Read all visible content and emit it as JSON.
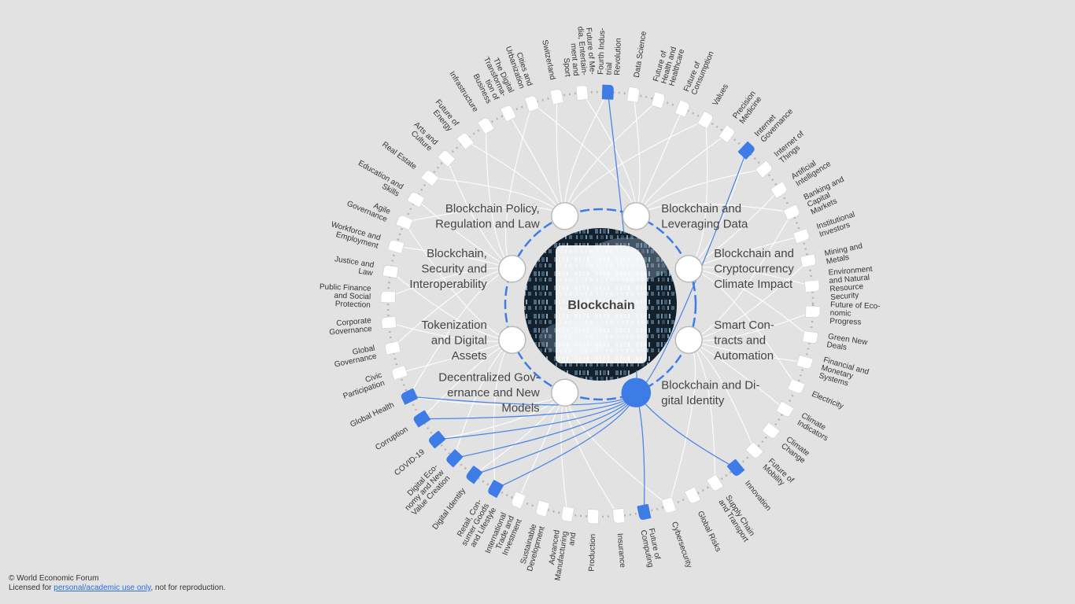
{
  "center": {
    "title": "Blockchain"
  },
  "colors": {
    "highlight": "#3d7be6",
    "background": "#e2e2e2",
    "node": "#ffffff"
  },
  "key_issues": [
    {
      "lines": [
        "Blockchain Policy,",
        "Regulation and Law"
      ],
      "active": false
    },
    {
      "lines": [
        "Blockchain and",
        "Leveraging Data"
      ],
      "active": false
    },
    {
      "lines": [
        "Blockchain and",
        "Cryptocurrency",
        "Climate Impact"
      ],
      "active": false
    },
    {
      "lines": [
        "Smart Con-",
        "tracts and",
        "Automation"
      ],
      "active": false
    },
    {
      "lines": [
        "Blockchain and Di-",
        "gital Identity"
      ],
      "active": true
    },
    {
      "lines": [
        "Decentralized Gov-",
        "ernance and New",
        "Models"
      ],
      "active": false
    },
    {
      "lines": [
        "Tokenization",
        "and Digital",
        "Assets"
      ],
      "active": false
    },
    {
      "lines": [
        "Blockchain,",
        "Security and",
        "Interoperability"
      ],
      "active": false
    }
  ],
  "topics": [
    {
      "lines": [
        "Fourth Indus-",
        "trial",
        "Revolution"
      ],
      "highlighted": true
    },
    {
      "lines": [
        "Data Science"
      ],
      "highlighted": false
    },
    {
      "lines": [
        "Future of",
        "Health and",
        "Healthcare"
      ],
      "highlighted": false
    },
    {
      "lines": [
        "Future of",
        "Consumption"
      ],
      "highlighted": false
    },
    {
      "lines": [
        "Values"
      ],
      "highlighted": false
    },
    {
      "lines": [
        "Precision",
        "Medicine"
      ],
      "highlighted": false
    },
    {
      "lines": [
        "Internet",
        "Governance"
      ],
      "highlighted": true
    },
    {
      "lines": [
        "Internet of",
        "Things"
      ],
      "highlighted": false
    },
    {
      "lines": [
        "Artificial",
        "Intelligence"
      ],
      "highlighted": false
    },
    {
      "lines": [
        "Banking and",
        "Capital",
        "Markets"
      ],
      "highlighted": false
    },
    {
      "lines": [
        "Institutional",
        "Investors"
      ],
      "highlighted": false
    },
    {
      "lines": [
        "Mining and",
        "Metals"
      ],
      "highlighted": false
    },
    {
      "lines": [
        "Environment",
        "and Natural",
        "Resource",
        "Security"
      ],
      "highlighted": false
    },
    {
      "lines": [
        "Future of Eco-",
        "nomic",
        "Progress"
      ],
      "highlighted": false
    },
    {
      "lines": [
        "Green New",
        "Deals"
      ],
      "highlighted": false
    },
    {
      "lines": [
        "Financial and",
        "Monetary",
        "Systems"
      ],
      "highlighted": false
    },
    {
      "lines": [
        "Electricity"
      ],
      "highlighted": false
    },
    {
      "lines": [
        "Climate",
        "Indicators"
      ],
      "highlighted": false
    },
    {
      "lines": [
        "Climate",
        "Change"
      ],
      "highlighted": false
    },
    {
      "lines": [
        "Future of",
        "Mobility"
      ],
      "highlighted": false
    },
    {
      "lines": [
        "Innovation"
      ],
      "highlighted": true
    },
    {
      "lines": [
        "Supply Chain",
        "and Transport"
      ],
      "highlighted": false
    },
    {
      "lines": [
        "Global Risks"
      ],
      "highlighted": false
    },
    {
      "lines": [
        "Cybersecurity"
      ],
      "highlighted": false
    },
    {
      "lines": [
        "Future of",
        "Computing"
      ],
      "highlighted": true
    },
    {
      "lines": [
        "Insurance"
      ],
      "highlighted": false
    },
    {
      "lines": [
        "Production"
      ],
      "highlighted": false
    },
    {
      "lines": [
        "Advanced",
        "Manufacturing",
        "and"
      ],
      "highlighted": false
    },
    {
      "lines": [
        "Sustainable",
        "Development"
      ],
      "highlighted": false
    },
    {
      "lines": [
        "International",
        "Trade and",
        "Investment"
      ],
      "highlighted": false
    },
    {
      "lines": [
        "Retail, Con-",
        "sumer Goods",
        "and Lifestyle"
      ],
      "highlighted": true
    },
    {
      "lines": [
        "Digital Identity"
      ],
      "highlighted": true
    },
    {
      "lines": [
        "Digital Eco-",
        "nomy and New",
        "Value Creation"
      ],
      "highlighted": true
    },
    {
      "lines": [
        "COVID-19"
      ],
      "highlighted": true
    },
    {
      "lines": [
        "Corruption"
      ],
      "highlighted": true
    },
    {
      "lines": [
        "Global Health"
      ],
      "highlighted": true
    },
    {
      "lines": [
        "Civic",
        "Participation"
      ],
      "highlighted": false
    },
    {
      "lines": [
        "Global",
        "Governance"
      ],
      "highlighted": false
    },
    {
      "lines": [
        "Corporate",
        "Governance"
      ],
      "highlighted": false
    },
    {
      "lines": [
        "Public Finance",
        "and Social",
        "Protection"
      ],
      "highlighted": false
    },
    {
      "lines": [
        "Justice and",
        "Law"
      ],
      "highlighted": false
    },
    {
      "lines": [
        "Workforce and",
        "Employment"
      ],
      "highlighted": false
    },
    {
      "lines": [
        "Agile",
        "Governance"
      ],
      "highlighted": false
    },
    {
      "lines": [
        "Education and",
        "Skills"
      ],
      "highlighted": false
    },
    {
      "lines": [
        "Real Estate"
      ],
      "highlighted": false
    },
    {
      "lines": [
        "Arts and",
        "Culture"
      ],
      "highlighted": false
    },
    {
      "lines": [
        "Future of",
        "Energy"
      ],
      "highlighted": false
    },
    {
      "lines": [
        "Infrastructure"
      ],
      "highlighted": false
    },
    {
      "lines": [
        "The Digital",
        "Transforma-",
        "tion of",
        "Business"
      ],
      "highlighted": false
    },
    {
      "lines": [
        "Cities and",
        "Urbanization"
      ],
      "highlighted": false
    },
    {
      "lines": [
        "Switzerland"
      ],
      "highlighted": false
    },
    {
      "lines": [
        "Future of Me-",
        "dia, Entertain-",
        "ment and",
        "Sport"
      ],
      "highlighted": false
    }
  ],
  "footer": {
    "copyright": "© World Economic Forum",
    "license_prefix": "Licensed for ",
    "license_link": "personal/academic use only",
    "license_suffix": ", not for reproduction."
  }
}
